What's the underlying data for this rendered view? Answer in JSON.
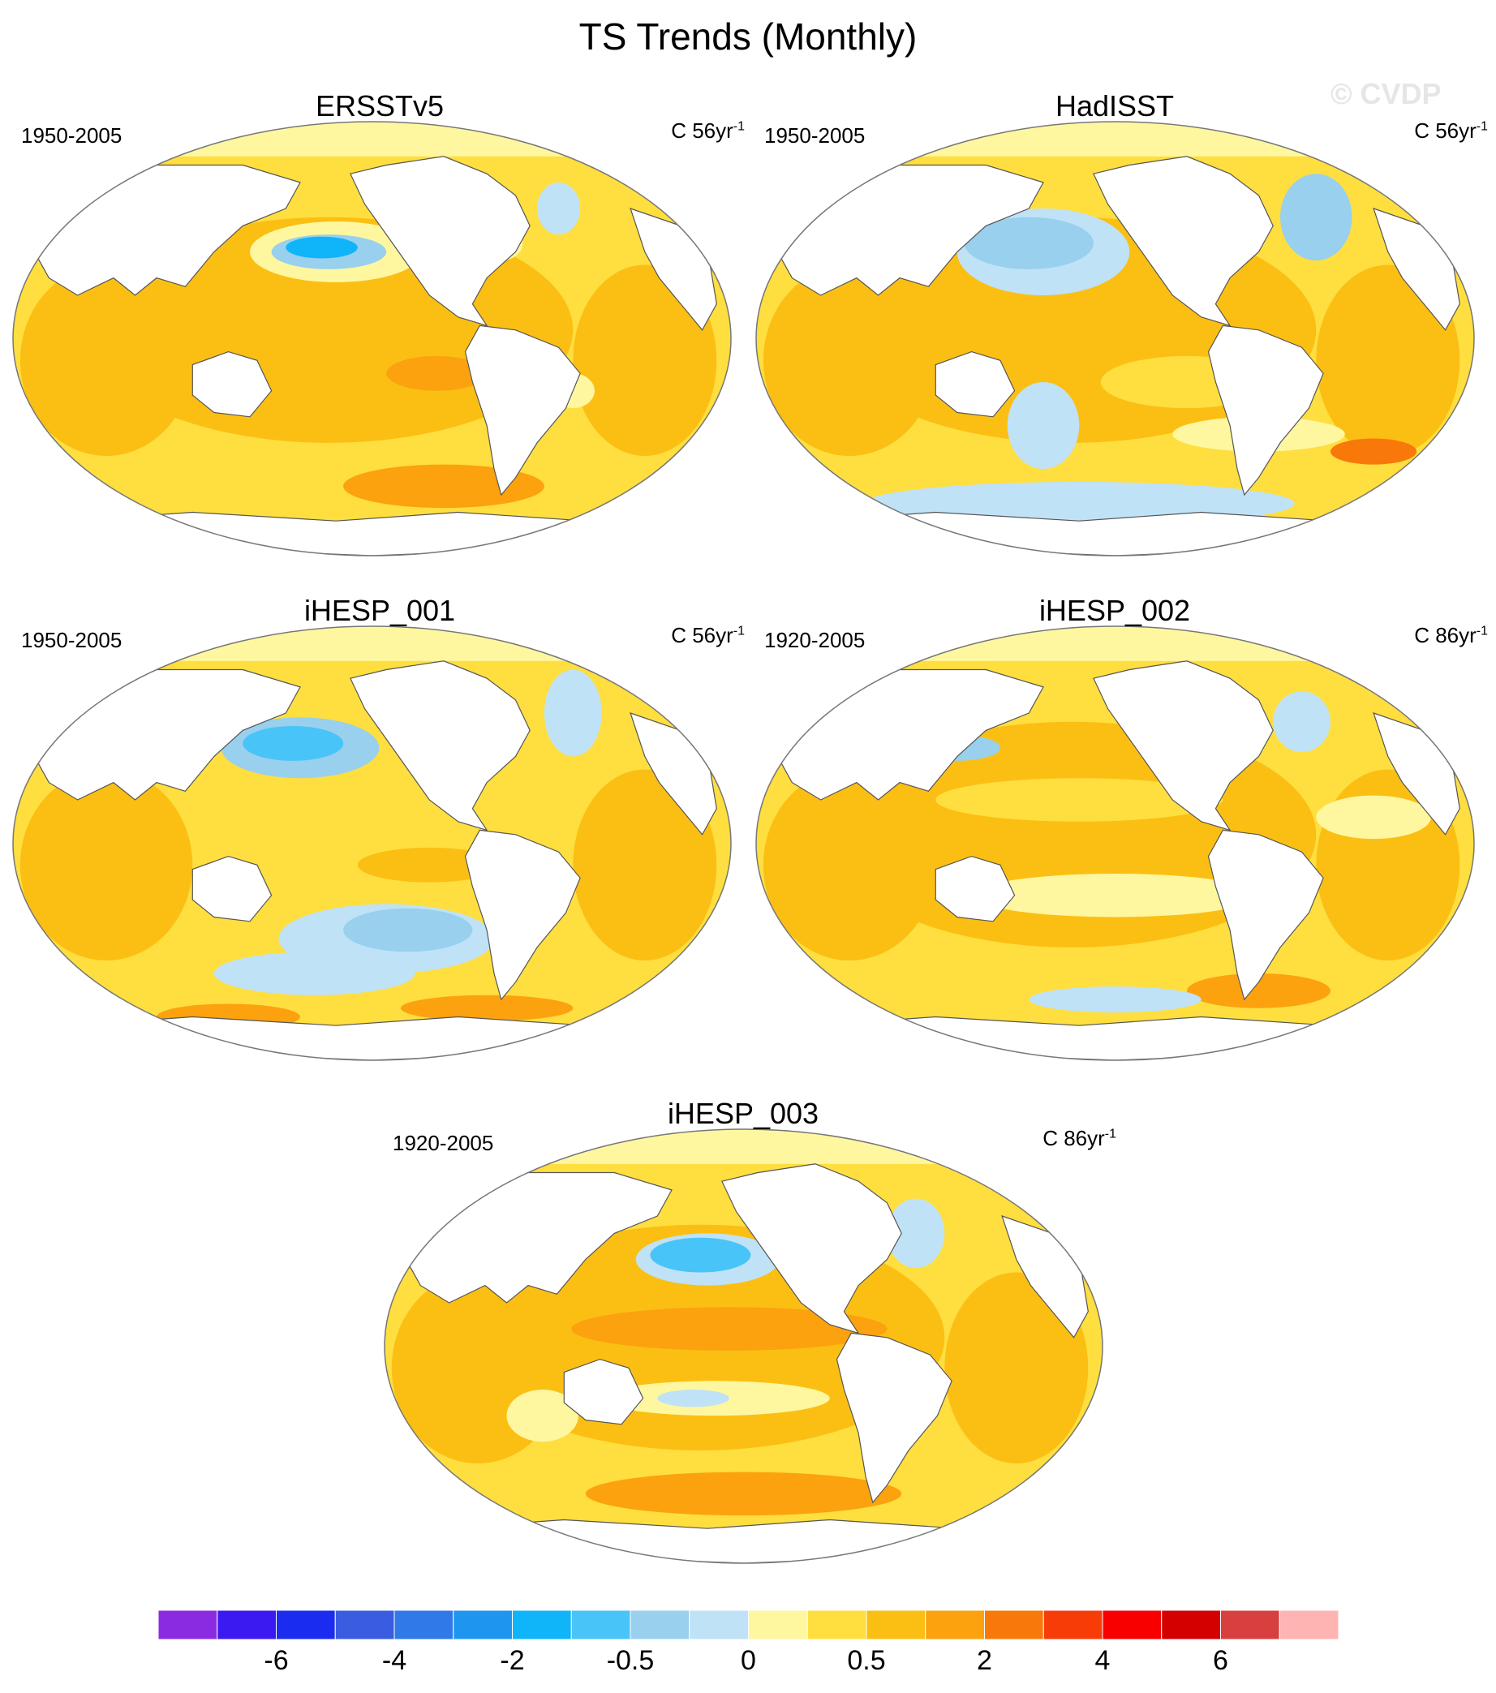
{
  "title": "TS Trends (Monthly)",
  "watermark": "© CVDP",
  "panels": [
    {
      "title": "ERSSTv5",
      "period": "1950-2005",
      "units_prefix": "C 56yr",
      "units_sup": "-1",
      "style": "ersst"
    },
    {
      "title": "HadISST",
      "period": "1950-2005",
      "units_prefix": "C 56yr",
      "units_sup": "-1",
      "style": "hadisst"
    },
    {
      "title": "iHESP_001",
      "period": "1950-2005",
      "units_prefix": "C 56yr",
      "units_sup": "-1",
      "style": "ihesp1"
    },
    {
      "title": "iHESP_002",
      "period": "1920-2005",
      "units_prefix": "C 86yr",
      "units_sup": "-1",
      "style": "ihesp2"
    },
    {
      "title": "iHESP_003",
      "period": "1920-2005",
      "units_prefix": "C 86yr",
      "units_sup": "-1",
      "style": "ihesp3"
    }
  ],
  "colorbar": {
    "colors": [
      "#8a2be2",
      "#3a1af0",
      "#1a2cf0",
      "#3a5ce0",
      "#2f7ae8",
      "#1e96f0",
      "#10b4f8",
      "#48c4f8",
      "#98d0ee",
      "#bfe2f6",
      "#fff7a0",
      "#ffde40",
      "#fbbf14",
      "#fba20e",
      "#f8780a",
      "#f83c08",
      "#f80000",
      "#d40000",
      "#d84040",
      "#ffb4b4"
    ],
    "labels": [
      "-6",
      "-4",
      "-2",
      "-0.5",
      "0",
      "0.5",
      "2",
      "4",
      "6"
    ],
    "label_positions": [
      2,
      4,
      6,
      8,
      10,
      12,
      14,
      16,
      18
    ]
  }
}
